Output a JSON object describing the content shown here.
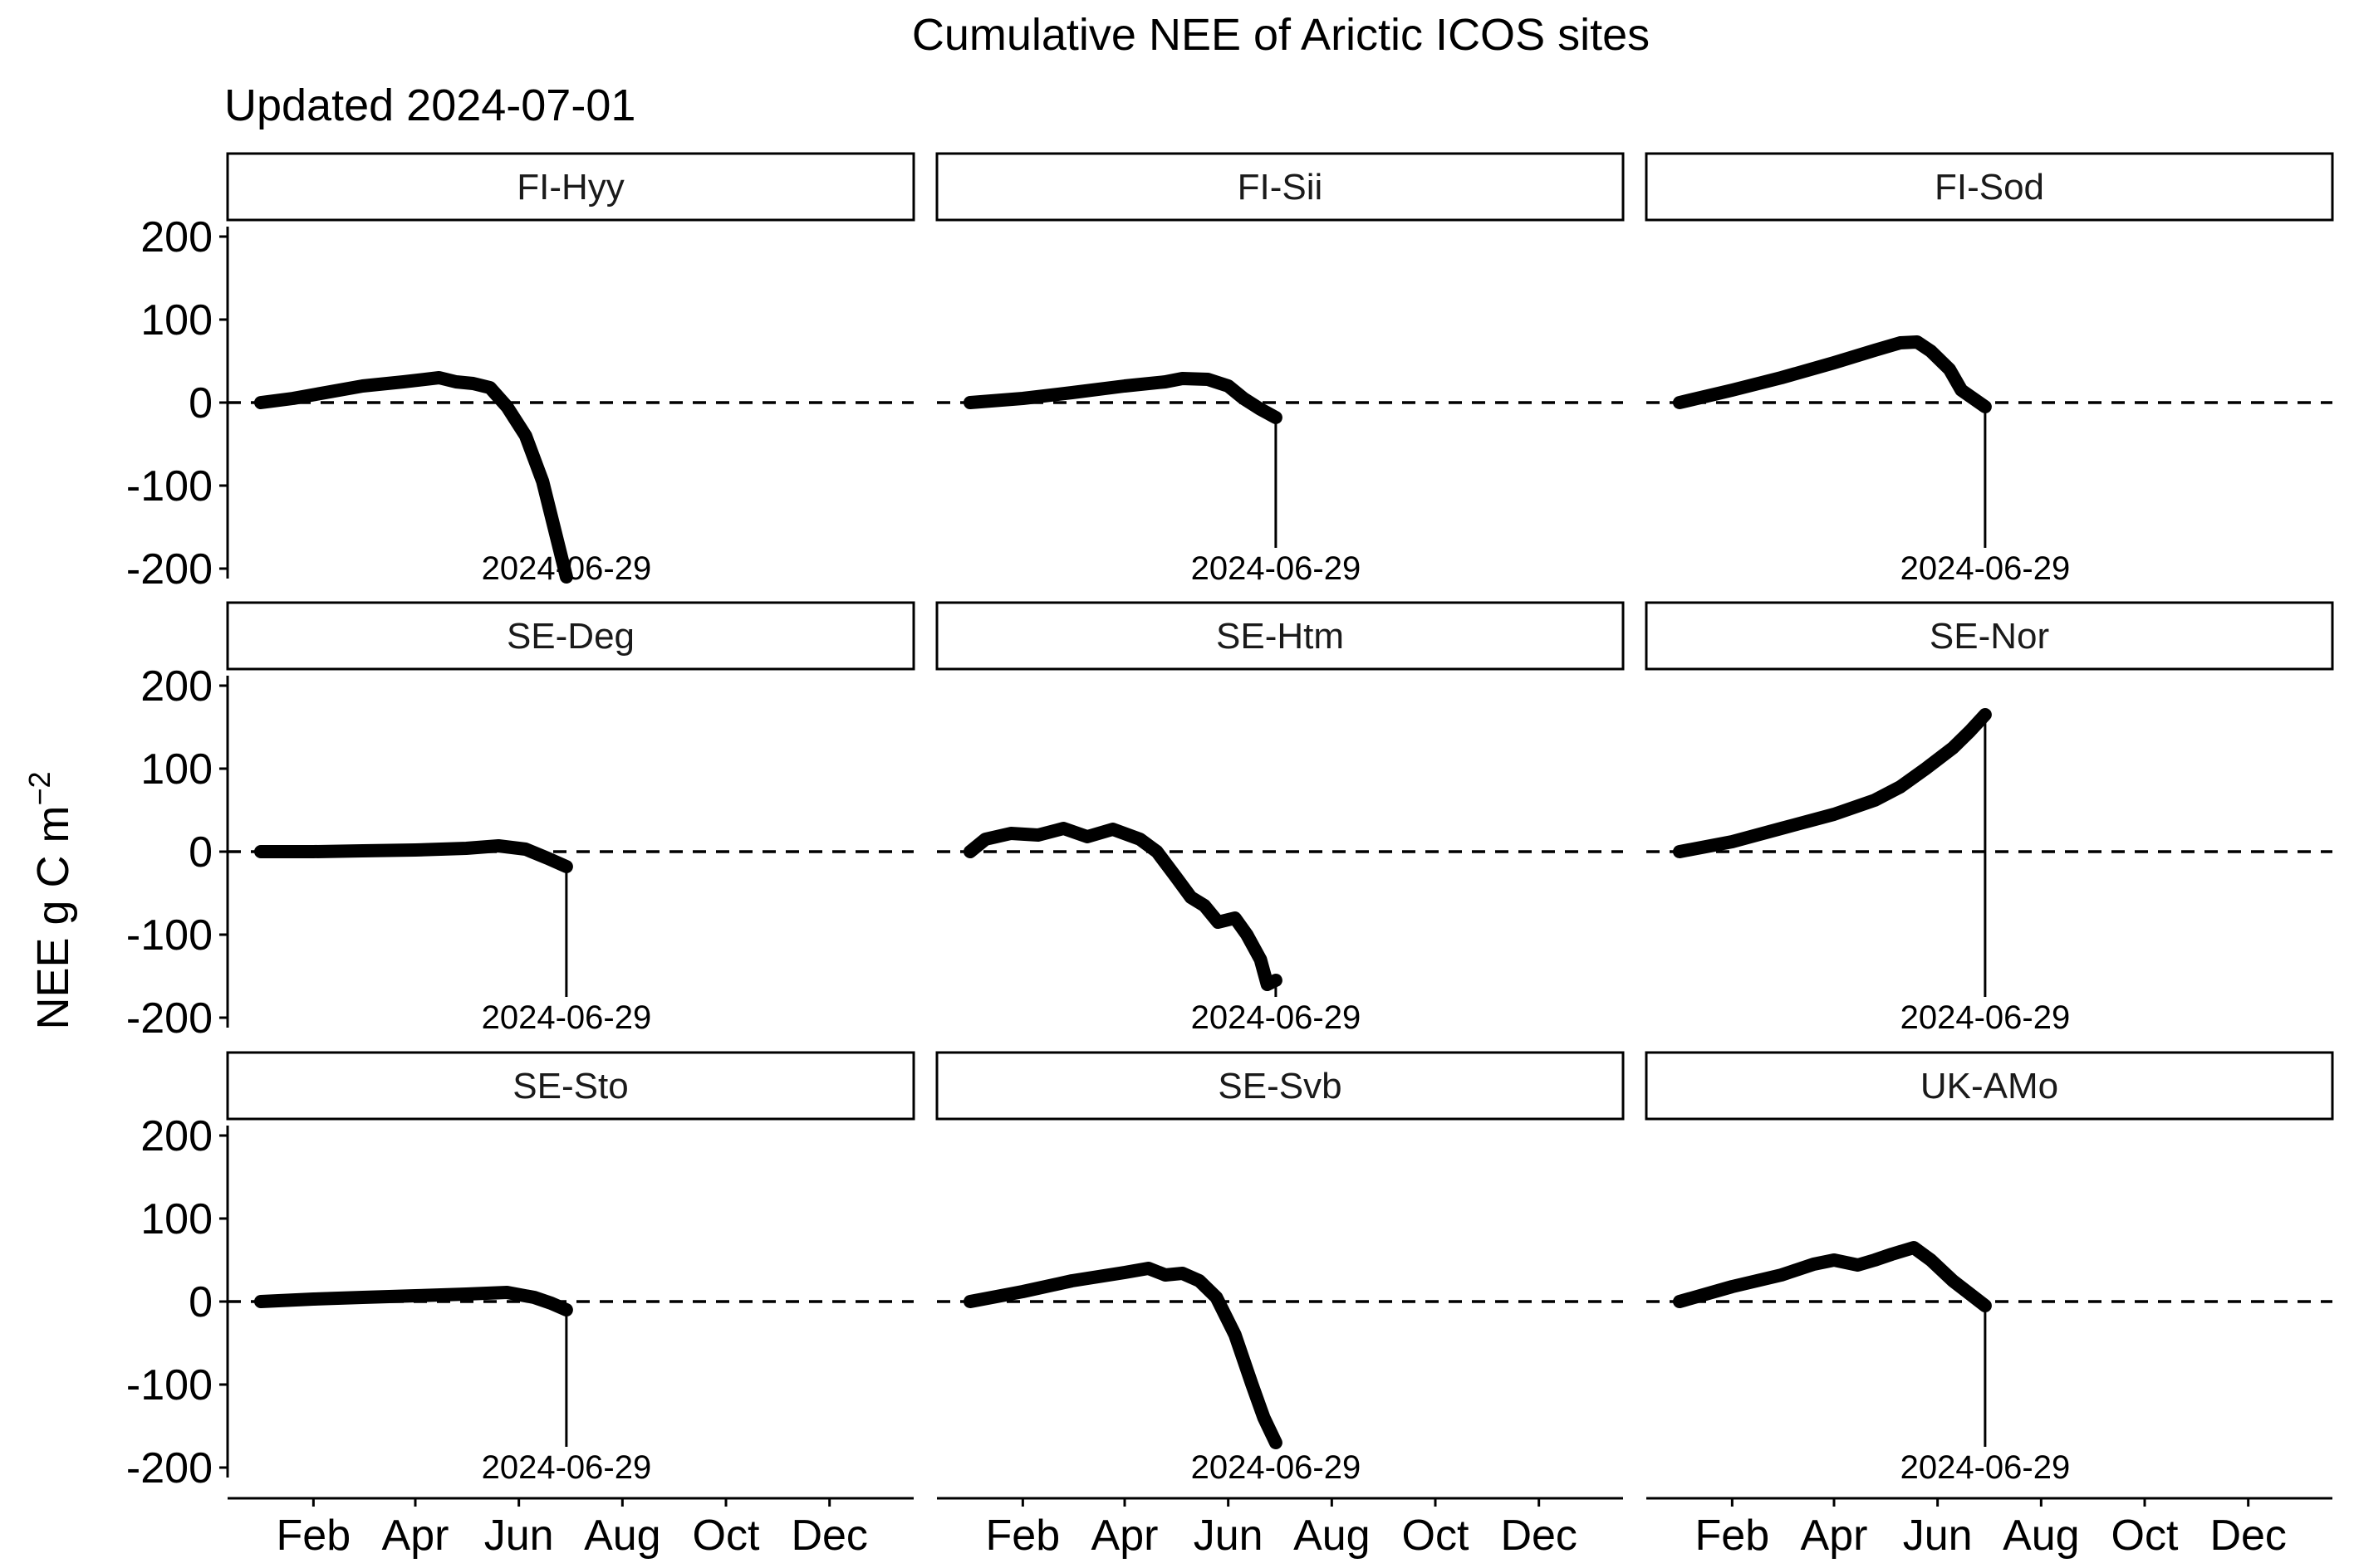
{
  "chart_data": {
    "type": "line",
    "title": "Cumulative NEE of Arictic ICOS sites",
    "subtitle": "Updated 2024-07-01",
    "xlabel": "",
    "ylabel": "NEE g C m",
    "ylabel_superscript": "−2",
    "x_ticks": [
      "Feb",
      "Apr",
      "Jun",
      "Aug",
      "Oct",
      "Dec"
    ],
    "y_ticks": [
      "200",
      "100",
      "0",
      "-100",
      "-200"
    ],
    "ylim": [
      -215,
      215
    ],
    "reference_line": 0,
    "annotation_label": "2024-06-29",
    "annotation_x": "2024-06-29",
    "panels": [
      {
        "name": "FI-Hyy",
        "series": [
          [
            "2024-01-01",
            0
          ],
          [
            "2024-01-20",
            5
          ],
          [
            "2024-02-08",
            12
          ],
          [
            "2024-03-01",
            20
          ],
          [
            "2024-03-25",
            25
          ],
          [
            "2024-04-15",
            30
          ],
          [
            "2024-04-25",
            25
          ],
          [
            "2024-05-05",
            23
          ],
          [
            "2024-05-15",
            18
          ],
          [
            "2024-05-25",
            -5
          ],
          [
            "2024-06-05",
            -40
          ],
          [
            "2024-06-15",
            -95
          ],
          [
            "2024-06-29",
            -210
          ]
        ]
      },
      {
        "name": "FI-Sii",
        "series": [
          [
            "2024-01-01",
            0
          ],
          [
            "2024-02-01",
            5
          ],
          [
            "2024-03-01",
            12
          ],
          [
            "2024-04-01",
            20
          ],
          [
            "2024-04-25",
            25
          ],
          [
            "2024-05-05",
            29
          ],
          [
            "2024-05-20",
            28
          ],
          [
            "2024-06-01",
            20
          ],
          [
            "2024-06-10",
            5
          ],
          [
            "2024-06-20",
            -8
          ],
          [
            "2024-06-29",
            -18
          ]
        ]
      },
      {
        "name": "FI-Sod",
        "series": [
          [
            "2024-01-01",
            0
          ],
          [
            "2024-02-01",
            15
          ],
          [
            "2024-03-01",
            30
          ],
          [
            "2024-04-01",
            48
          ],
          [
            "2024-04-25",
            63
          ],
          [
            "2024-05-10",
            72
          ],
          [
            "2024-05-20",
            73
          ],
          [
            "2024-05-28",
            62
          ],
          [
            "2024-06-08",
            40
          ],
          [
            "2024-06-15",
            15
          ],
          [
            "2024-06-29",
            -5
          ]
        ]
      },
      {
        "name": "SE-Deg",
        "series": [
          [
            "2024-01-01",
            0
          ],
          [
            "2024-02-01",
            0
          ],
          [
            "2024-03-01",
            1
          ],
          [
            "2024-04-01",
            2
          ],
          [
            "2024-05-01",
            4
          ],
          [
            "2024-05-20",
            7
          ],
          [
            "2024-06-05",
            3
          ],
          [
            "2024-06-18",
            -8
          ],
          [
            "2024-06-29",
            -18
          ]
        ]
      },
      {
        "name": "SE-Htm",
        "series": [
          [
            "2024-01-01",
            0
          ],
          [
            "2024-01-10",
            15
          ],
          [
            "2024-01-25",
            22
          ],
          [
            "2024-02-10",
            20
          ],
          [
            "2024-02-25",
            28
          ],
          [
            "2024-03-10",
            18
          ],
          [
            "2024-03-25",
            27
          ],
          [
            "2024-04-10",
            15
          ],
          [
            "2024-04-20",
            0
          ],
          [
            "2024-05-01",
            -30
          ],
          [
            "2024-05-10",
            -55
          ],
          [
            "2024-05-18",
            -65
          ],
          [
            "2024-05-26",
            -85
          ],
          [
            "2024-06-05",
            -80
          ],
          [
            "2024-06-12",
            -100
          ],
          [
            "2024-06-20",
            -130
          ],
          [
            "2024-06-24",
            -160
          ],
          [
            "2024-06-29",
            -155
          ]
        ]
      },
      {
        "name": "SE-Nor",
        "series": [
          [
            "2024-01-01",
            0
          ],
          [
            "2024-02-01",
            12
          ],
          [
            "2024-03-01",
            28
          ],
          [
            "2024-04-01",
            45
          ],
          [
            "2024-04-25",
            62
          ],
          [
            "2024-05-10",
            78
          ],
          [
            "2024-05-25",
            100
          ],
          [
            "2024-06-10",
            125
          ],
          [
            "2024-06-20",
            145
          ],
          [
            "2024-06-29",
            165
          ]
        ]
      },
      {
        "name": "SE-Sto",
        "series": [
          [
            "2024-01-01",
            0
          ],
          [
            "2024-02-01",
            3
          ],
          [
            "2024-03-01",
            5
          ],
          [
            "2024-04-01",
            7
          ],
          [
            "2024-05-01",
            9
          ],
          [
            "2024-05-25",
            11
          ],
          [
            "2024-06-10",
            5
          ],
          [
            "2024-06-20",
            -2
          ],
          [
            "2024-06-29",
            -10
          ]
        ]
      },
      {
        "name": "SE-Svb",
        "series": [
          [
            "2024-01-01",
            0
          ],
          [
            "2024-02-01",
            12
          ],
          [
            "2024-03-01",
            25
          ],
          [
            "2024-04-01",
            35
          ],
          [
            "2024-04-15",
            40
          ],
          [
            "2024-04-25",
            32
          ],
          [
            "2024-05-05",
            34
          ],
          [
            "2024-05-15",
            25
          ],
          [
            "2024-05-25",
            5
          ],
          [
            "2024-06-05",
            -40
          ],
          [
            "2024-06-15",
            -100
          ],
          [
            "2024-06-22",
            -140
          ],
          [
            "2024-06-29",
            -170
          ]
        ]
      },
      {
        "name": "UK-AMo",
        "series": [
          [
            "2024-01-01",
            0
          ],
          [
            "2024-02-01",
            18
          ],
          [
            "2024-03-01",
            32
          ],
          [
            "2024-03-20",
            45
          ],
          [
            "2024-04-01",
            50
          ],
          [
            "2024-04-15",
            44
          ],
          [
            "2024-04-25",
            50
          ],
          [
            "2024-05-05",
            57
          ],
          [
            "2024-05-18",
            65
          ],
          [
            "2024-05-28",
            50
          ],
          [
            "2024-06-10",
            25
          ],
          [
            "2024-06-29",
            -5
          ]
        ]
      }
    ]
  }
}
